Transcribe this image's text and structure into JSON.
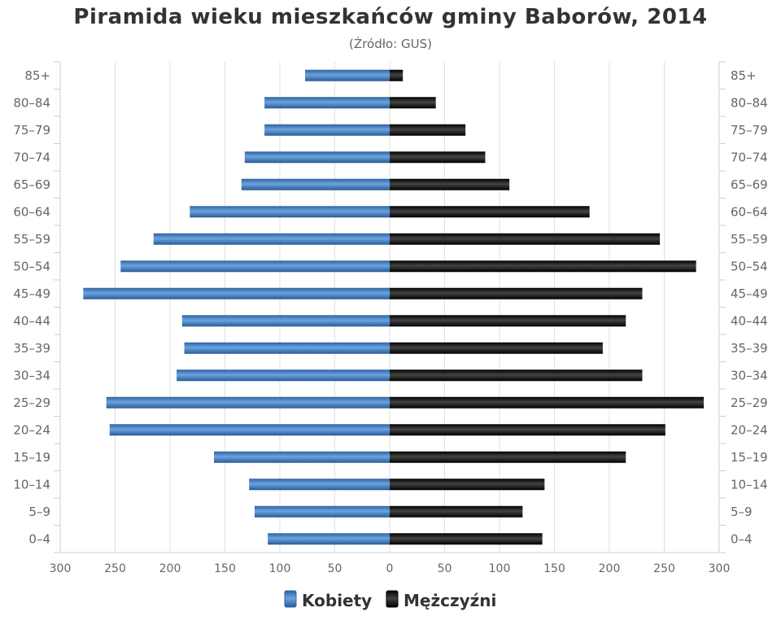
{
  "chart_data": {
    "type": "bar",
    "orientation": "horizontal",
    "title": "Piramida wieku mieszkańców gminy Baborów, 2014",
    "subtitle": "(Źródło: GUS)",
    "categories": [
      "0–4",
      "5–9",
      "10–14",
      "15–19",
      "20–24",
      "25–29",
      "30–34",
      "35–39",
      "40–44",
      "45–49",
      "50–54",
      "55–59",
      "60–64",
      "65–69",
      "70–74",
      "75–79",
      "80–84",
      "85+"
    ],
    "series": [
      {
        "name": "Kobiety",
        "color": "#4a86c8",
        "side": "left",
        "values": [
          111,
          123,
          128,
          160,
          255,
          258,
          194,
          187,
          189,
          279,
          245,
          215,
          182,
          135,
          132,
          114,
          114,
          77
        ]
      },
      {
        "name": "Mężczyźni",
        "color": "#222222",
        "side": "right",
        "values": [
          139,
          121,
          141,
          215,
          251,
          286,
          230,
          194,
          215,
          230,
          279,
          246,
          182,
          109,
          87,
          69,
          42,
          12
        ]
      }
    ],
    "xlim": [
      -300,
      300
    ],
    "xticks": [
      -300,
      -250,
      -200,
      -150,
      -100,
      -50,
      0,
      50,
      100,
      150,
      200,
      250,
      300
    ],
    "xtick_labels": [
      "300",
      "250",
      "200",
      "150",
      "100",
      "50",
      "0",
      "50",
      "100",
      "150",
      "200",
      "250",
      "300"
    ],
    "grid": true,
    "legend": "bottom-center"
  }
}
